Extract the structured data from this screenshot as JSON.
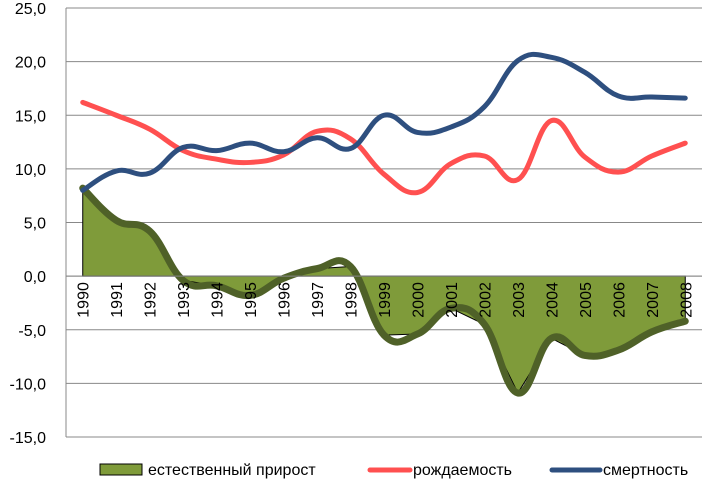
{
  "chart_data": {
    "type": "line",
    "title": "",
    "xlabel": "",
    "ylabel": "",
    "categories": [
      "1990",
      "1991",
      "1992",
      "1993",
      "1994",
      "1995",
      "1996",
      "1997",
      "1998",
      "1999",
      "2000",
      "2001",
      "2002",
      "2003",
      "2004",
      "2005",
      "2006",
      "2007",
      "2008"
    ],
    "ylim": [
      -15,
      25
    ],
    "y_ticks": [
      "25,0",
      "20,0",
      "15,0",
      "10,0",
      "5,0",
      "0,0",
      "-5,0",
      "-10,0",
      "-15,0"
    ],
    "grid": true,
    "legend_position": "bottom",
    "series": [
      {
        "name": "естественный прирост",
        "kind": "area",
        "color": "#7f9b3a",
        "line_color": "#4f6128",
        "values": [
          8.2,
          5.2,
          4.2,
          -0.4,
          -0.9,
          -1.8,
          -0.2,
          0.7,
          0.9,
          -5.5,
          -5.4,
          -3.0,
          -4.5,
          -10.9,
          -5.8,
          -7.4,
          -6.9,
          -5.2,
          -4.2
        ]
      },
      {
        "name": "рождаемость",
        "kind": "line",
        "color": "#ff5050",
        "values": [
          16.2,
          15.0,
          13.7,
          11.7,
          10.9,
          10.6,
          11.3,
          13.5,
          12.8,
          9.5,
          7.8,
          10.5,
          11.2,
          9.0,
          14.5,
          11.1,
          9.7,
          11.2,
          12.4
        ]
      },
      {
        "name": "смертность",
        "kind": "line",
        "color": "#2e4f7f",
        "values": [
          8.0,
          9.8,
          9.6,
          12.0,
          11.7,
          12.4,
          11.6,
          12.9,
          11.9,
          15.0,
          13.4,
          13.9,
          15.8,
          20.1,
          20.4,
          19.0,
          16.8,
          16.7,
          16.6
        ]
      }
    ]
  }
}
